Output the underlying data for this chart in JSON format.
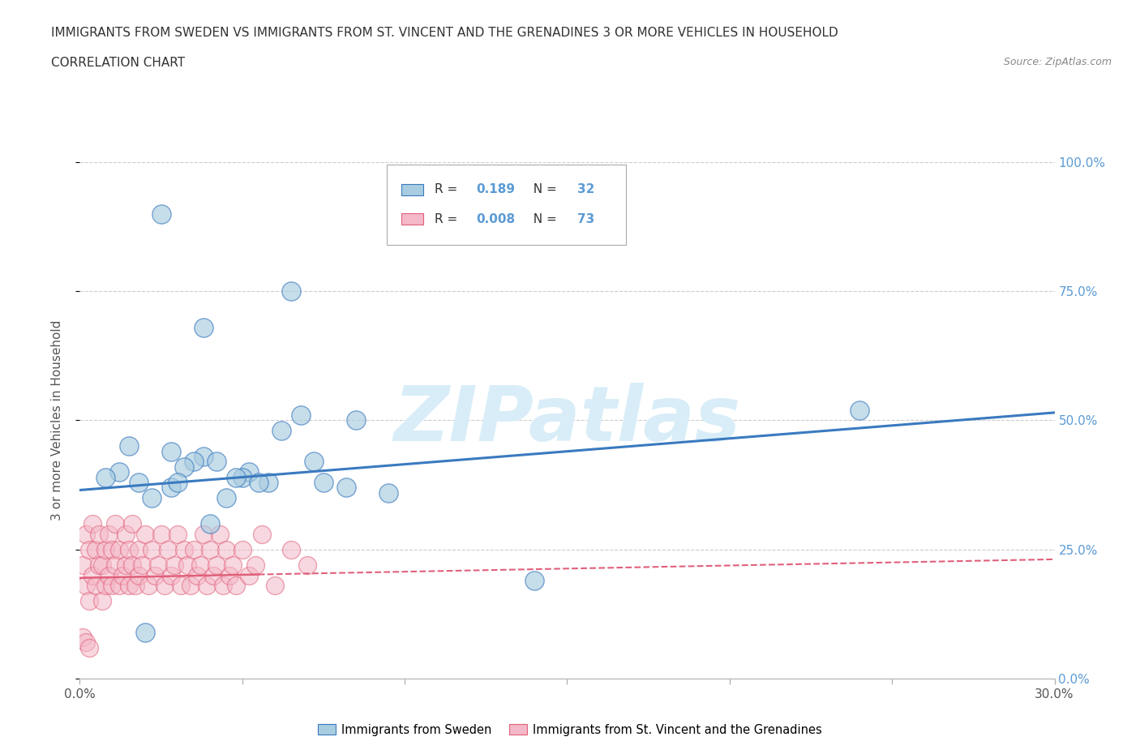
{
  "title": "IMMIGRANTS FROM SWEDEN VS IMMIGRANTS FROM ST. VINCENT AND THE GRENADINES 3 OR MORE VEHICLES IN HOUSEHOLD",
  "subtitle": "CORRELATION CHART",
  "source": "Source: ZipAtlas.com",
  "ylabel": "3 or more Vehicles in Household",
  "xlim": [
    0.0,
    0.3
  ],
  "ylim": [
    0.0,
    1.0
  ],
  "xtick_positions": [
    0.0,
    0.05,
    0.1,
    0.15,
    0.2,
    0.25,
    0.3
  ],
  "ytick_positions": [
    0.0,
    0.25,
    0.5,
    0.75,
    1.0
  ],
  "yticklabels": [
    "0.0%",
    "25.0%",
    "50.0%",
    "75.0%",
    "100.0%"
  ],
  "legend_sweden": "Immigrants from Sweden",
  "legend_stv": "Immigrants from St. Vincent and the Grenadines",
  "r_sweden": 0.189,
  "n_sweden": 32,
  "r_stv": 0.008,
  "n_stv": 73,
  "color_sweden": "#a8cce0",
  "color_stv": "#f4b8c8",
  "trendline_sweden_color": "#3a7abf",
  "trendline_stv_color": "#e0607a",
  "watermark": "ZIPatlas",
  "watermark_color": "#d8edf8",
  "sweden_x": [
    0.028,
    0.038,
    0.065,
    0.025,
    0.038,
    0.052,
    0.042,
    0.05,
    0.035,
    0.028,
    0.018,
    0.012,
    0.058,
    0.072,
    0.082,
    0.095,
    0.062,
    0.048,
    0.022,
    0.032,
    0.015,
    0.008,
    0.24,
    0.085,
    0.045,
    0.068,
    0.03,
    0.055,
    0.075,
    0.14,
    0.04,
    0.02
  ],
  "sweden_y": [
    0.44,
    0.43,
    0.75,
    0.9,
    0.68,
    0.4,
    0.42,
    0.39,
    0.42,
    0.37,
    0.38,
    0.4,
    0.38,
    0.42,
    0.37,
    0.36,
    0.48,
    0.39,
    0.35,
    0.41,
    0.45,
    0.39,
    0.52,
    0.5,
    0.35,
    0.51,
    0.38,
    0.38,
    0.38,
    0.19,
    0.3,
    0.09
  ],
  "stv_x": [
    0.001,
    0.002,
    0.002,
    0.003,
    0.003,
    0.004,
    0.004,
    0.005,
    0.005,
    0.006,
    0.006,
    0.007,
    0.007,
    0.008,
    0.008,
    0.009,
    0.009,
    0.01,
    0.01,
    0.011,
    0.011,
    0.012,
    0.012,
    0.013,
    0.014,
    0.014,
    0.015,
    0.015,
    0.016,
    0.016,
    0.017,
    0.018,
    0.018,
    0.019,
    0.02,
    0.021,
    0.022,
    0.023,
    0.024,
    0.025,
    0.026,
    0.027,
    0.028,
    0.029,
    0.03,
    0.031,
    0.032,
    0.033,
    0.034,
    0.035,
    0.036,
    0.037,
    0.038,
    0.039,
    0.04,
    0.041,
    0.042,
    0.043,
    0.044,
    0.045,
    0.046,
    0.047,
    0.048,
    0.05,
    0.052,
    0.054,
    0.056,
    0.06,
    0.065,
    0.07,
    0.001,
    0.002,
    0.003
  ],
  "stv_y": [
    0.22,
    0.18,
    0.28,
    0.15,
    0.25,
    0.2,
    0.3,
    0.18,
    0.25,
    0.22,
    0.28,
    0.15,
    0.22,
    0.18,
    0.25,
    0.2,
    0.28,
    0.18,
    0.25,
    0.22,
    0.3,
    0.18,
    0.25,
    0.2,
    0.28,
    0.22,
    0.18,
    0.25,
    0.22,
    0.3,
    0.18,
    0.25,
    0.2,
    0.22,
    0.28,
    0.18,
    0.25,
    0.2,
    0.22,
    0.28,
    0.18,
    0.25,
    0.2,
    0.22,
    0.28,
    0.18,
    0.25,
    0.22,
    0.18,
    0.25,
    0.2,
    0.22,
    0.28,
    0.18,
    0.25,
    0.2,
    0.22,
    0.28,
    0.18,
    0.25,
    0.2,
    0.22,
    0.18,
    0.25,
    0.2,
    0.22,
    0.28,
    0.18,
    0.25,
    0.22,
    0.08,
    0.07,
    0.06
  ]
}
